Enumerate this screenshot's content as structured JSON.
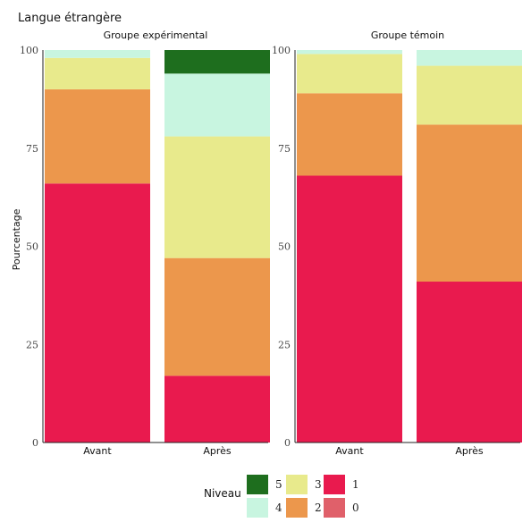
{
  "chart_data": {
    "type": "bar",
    "stacked": true,
    "percent": true,
    "title": "Langue étrangère",
    "ylabel": "Pourcentage",
    "xlabel": "",
    "ylim": [
      0,
      100
    ],
    "yticks": [
      0,
      25,
      50,
      75,
      100
    ],
    "categories": [
      "Avant",
      "Après"
    ],
    "legend": {
      "title": "Niveau",
      "position": "bottom",
      "entries": [
        {
          "label": "5",
          "color": "#1e6e1e"
        },
        {
          "label": "4",
          "color": "#c8f5e0"
        },
        {
          "label": "3",
          "color": "#e8ea8c"
        },
        {
          "label": "2",
          "color": "#ec974c"
        },
        {
          "label": "1",
          "color": "#e91a4e"
        },
        {
          "label": "0",
          "color": "#e0606a"
        }
      ]
    },
    "panels": [
      {
        "name": "Groupe expérimental",
        "series": [
          {
            "name": "0",
            "color": "#e0606a",
            "values": [
              0,
              0
            ]
          },
          {
            "name": "1",
            "color": "#e91a4e",
            "values": [
              66,
              17
            ]
          },
          {
            "name": "2",
            "color": "#ec974c",
            "values": [
              24,
              30
            ]
          },
          {
            "name": "3",
            "color": "#e8ea8c",
            "values": [
              8,
              31
            ]
          },
          {
            "name": "4",
            "color": "#c8f5e0",
            "values": [
              2,
              16
            ]
          },
          {
            "name": "5",
            "color": "#1e6e1e",
            "values": [
              0,
              6
            ]
          }
        ]
      },
      {
        "name": "Groupe témoin",
        "series": [
          {
            "name": "0",
            "color": "#e0606a",
            "values": [
              0,
              0
            ]
          },
          {
            "name": "1",
            "color": "#e91a4e",
            "values": [
              68,
              41
            ]
          },
          {
            "name": "2",
            "color": "#ec974c",
            "values": [
              21,
              40
            ]
          },
          {
            "name": "3",
            "color": "#e8ea8c",
            "values": [
              10,
              15
            ]
          },
          {
            "name": "4",
            "color": "#c8f5e0",
            "values": [
              1,
              4
            ]
          },
          {
            "name": "5",
            "color": "#1e6e1e",
            "values": [
              0,
              0
            ]
          }
        ]
      }
    ]
  }
}
